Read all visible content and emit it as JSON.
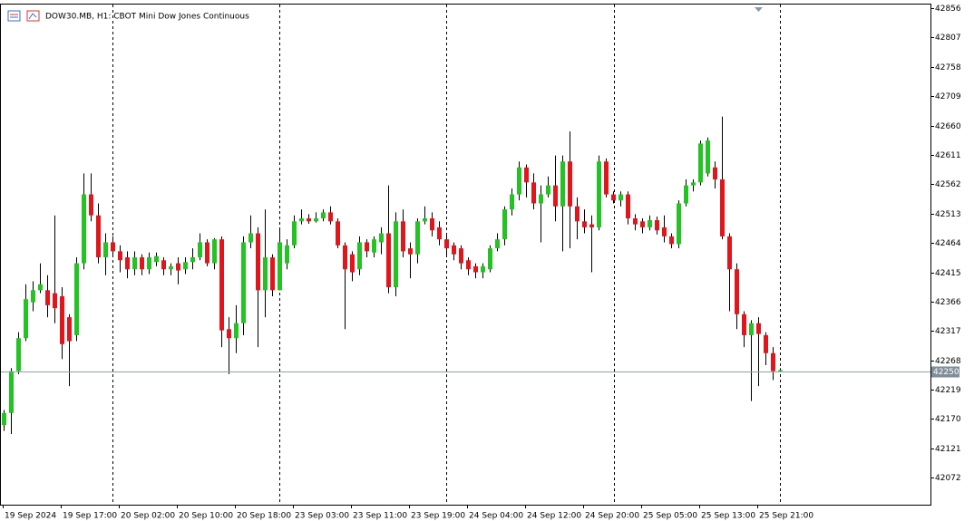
{
  "chart_data": {
    "type": "candlestick",
    "title": "DOW30.MB, H1:  CBOT Mini Dow Jones Continuous",
    "categories": [
      "19 Sep 2024",
      null,
      null,
      null,
      null,
      null,
      null,
      null,
      "19 Sep 17:00",
      null,
      null,
      null,
      null,
      null,
      null,
      null,
      "20 Sep 02:00",
      null,
      null,
      null,
      null,
      null,
      null,
      null,
      "20 Sep 10:00",
      null,
      null,
      null,
      null,
      null,
      null,
      null,
      "20 Sep 18:00",
      null,
      null,
      null,
      null,
      null,
      null,
      null,
      "23 Sep 03:00",
      null,
      null,
      null,
      null,
      null,
      null,
      null,
      "23 Sep 11:00",
      null,
      null,
      null,
      null,
      null,
      null,
      null,
      "23 Sep 19:00",
      null,
      null,
      null,
      null,
      null,
      null,
      null,
      "24 Sep 04:00",
      null,
      null,
      null,
      null,
      null,
      null,
      null,
      "24 Sep 12:00",
      null,
      null,
      null,
      null,
      null,
      null,
      null,
      "24 Sep 20:00",
      null,
      null,
      null,
      null,
      null,
      null,
      null,
      "25 Sep 05:00",
      null,
      null,
      null,
      null,
      null,
      null,
      null,
      "25 Sep 13:00",
      null,
      null,
      null,
      null,
      null,
      null,
      null,
      "25 Sep 21:00",
      null,
      null,
      null
    ],
    "open": [
      42160,
      42180,
      42250,
      42305,
      42365,
      42385,
      42385,
      42380,
      42375,
      42340,
      42310,
      42430,
      42545,
      42510,
      42440,
      42465,
      42450,
      42440,
      42420,
      42440,
      42420,
      42432,
      42435,
      42420,
      42430,
      42420,
      42432,
      42440,
      42465,
      42430,
      42470,
      42320,
      42305,
      42330,
      42465,
      42480,
      42385,
      42440,
      42385,
      42430,
      42460,
      42500,
      42505,
      42500,
      42505,
      42515,
      42500,
      42460,
      42445,
      42420,
      42465,
      42448,
      42465,
      42480,
      42390,
      42500,
      42455,
      42445,
      42500,
      42505,
      42490,
      42470,
      42460,
      42455,
      42435,
      42425,
      42415,
      42420,
      42455,
      42470,
      42520,
      42545,
      42590,
      42565,
      42530,
      42545,
      42560,
      42525,
      42600,
      42525,
      42500,
      42495,
      42490,
      42600,
      42545,
      42535,
      42545,
      42505,
      42500,
      42490,
      42502,
      42490,
      42475,
      42462,
      42530,
      42560,
      42565,
      42580,
      42590,
      42570,
      42475,
      42420,
      42345,
      42310,
      42330,
      42310,
      42280,
      42250
    ],
    "high": [
      42185,
      42255,
      42315,
      42395,
      42400,
      42430,
      42410,
      42510,
      42390,
      42345,
      42440,
      42580,
      42580,
      42530,
      42480,
      42475,
      42460,
      42450,
      42450,
      42445,
      42448,
      42448,
      42440,
      42430,
      42440,
      42440,
      42455,
      42480,
      42470,
      42472,
      42475,
      42340,
      42360,
      42475,
      42510,
      42490,
      42520,
      42445,
      42490,
      42470,
      42510,
      42520,
      42512,
      42515,
      42520,
      42525,
      42505,
      42465,
      42450,
      42475,
      42470,
      42475,
      42490,
      42560,
      42515,
      42520,
      42465,
      42505,
      42525,
      42515,
      42500,
      42480,
      42465,
      42460,
      42440,
      42430,
      42430,
      42460,
      42480,
      42525,
      42555,
      42600,
      42595,
      42580,
      42560,
      42575,
      42610,
      42610,
      42650,
      42540,
      42520,
      42510,
      42610,
      42605,
      42550,
      42550,
      42550,
      42512,
      42505,
      42510,
      42508,
      42510,
      42480,
      42535,
      42570,
      42570,
      42635,
      42640,
      42600,
      42675,
      42480,
      42430,
      42350,
      42335,
      42340,
      42315,
      42290,
      42255
    ],
    "low": [
      42150,
      42145,
      42245,
      42300,
      42350,
      42380,
      42340,
      42330,
      42270,
      42225,
      42300,
      42420,
      42500,
      42430,
      42410,
      42440,
      42415,
      42405,
      42410,
      42410,
      42412,
      42425,
      42410,
      42410,
      42395,
      42412,
      42420,
      42435,
      42425,
      42420,
      42290,
      42245,
      42280,
      42310,
      42455,
      42290,
      42340,
      42375,
      42385,
      42420,
      42455,
      42495,
      42496,
      42498,
      42500,
      42495,
      42455,
      42320,
      42400,
      42410,
      42440,
      42440,
      42445,
      42380,
      42375,
      42440,
      42405,
      42430,
      42495,
      42475,
      42460,
      42440,
      42435,
      42420,
      42410,
      42405,
      42405,
      42415,
      42450,
      42460,
      42510,
      42535,
      42540,
      42520,
      42465,
      42540,
      42500,
      42450,
      42455,
      42470,
      42480,
      42415,
      42485,
      42540,
      42530,
      42525,
      42495,
      42485,
      42480,
      42485,
      42478,
      42465,
      42455,
      42455,
      42525,
      42550,
      42560,
      42575,
      42555,
      42470,
      42350,
      42320,
      42290,
      42200,
      42225,
      42260,
      42235,
      42248
    ],
    "close": [
      42180,
      42250,
      42305,
      42370,
      42385,
      42395,
      42360,
      42355,
      42295,
      42300,
      42430,
      42545,
      42510,
      42440,
      42465,
      42450,
      42435,
      42420,
      42440,
      42420,
      42440,
      42442,
      42420,
      42425,
      42418,
      42432,
      42440,
      42465,
      42430,
      42470,
      42318,
      42305,
      42330,
      42465,
      42480,
      42385,
      42440,
      42385,
      42465,
      42460,
      42500,
      42505,
      42500,
      42505,
      42515,
      42500,
      42460,
      42420,
      42415,
      42465,
      42450,
      42470,
      42480,
      42390,
      42500,
      42450,
      42445,
      42500,
      42505,
      42485,
      42470,
      42455,
      42445,
      42430,
      42420,
      42415,
      42425,
      42455,
      42470,
      42520,
      42545,
      42590,
      42565,
      42530,
      42545,
      42560,
      42525,
      42600,
      42525,
      42500,
      42490,
      42490,
      42600,
      42545,
      42535,
      42545,
      42505,
      42495,
      42490,
      42502,
      42485,
      42475,
      42462,
      42530,
      42560,
      42565,
      42630,
      42635,
      42570,
      42475,
      42420,
      42345,
      42310,
      42330,
      42312,
      42280,
      42250,
      42252
    ],
    "up_color": "#22c322",
    "down_color": "#e0161c",
    "current_price": 42250,
    "ylim": [
      42027,
      42862
    ],
    "yticks": [
      42856,
      42807,
      42758,
      42709,
      42660,
      42611,
      42562,
      42513,
      42464,
      42415,
      42366,
      42317,
      42268,
      42219,
      42170,
      42121,
      42072
    ]
  }
}
